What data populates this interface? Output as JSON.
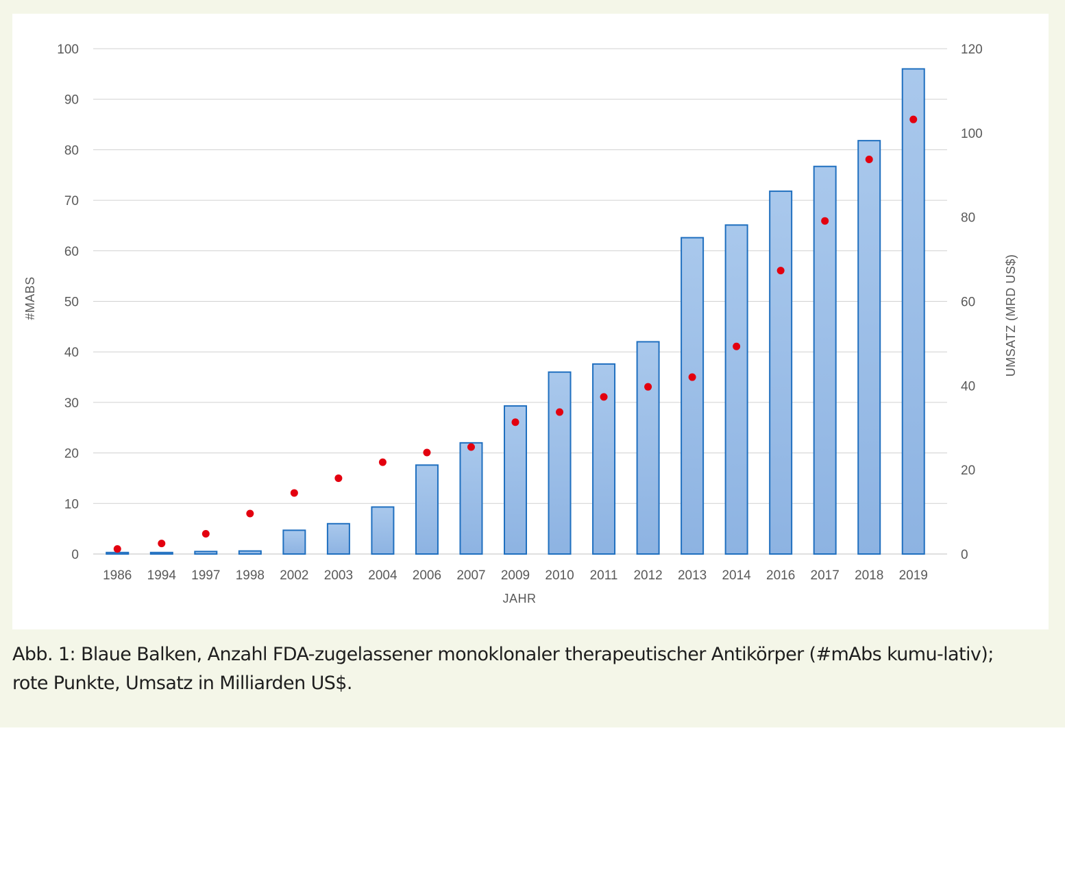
{
  "chart_data": {
    "type": "bar",
    "title": "",
    "categories": [
      "1986",
      "1994",
      "1997",
      "1998",
      "2002",
      "2003",
      "2004",
      "2006",
      "2007",
      "2009",
      "2010",
      "2011",
      "2012",
      "2013",
      "2014",
      "2016",
      "2017",
      "2018",
      "2019"
    ],
    "series": [
      {
        "name": "#mAbs kumulativ",
        "type": "bar",
        "axis": "left",
        "color": "#1f6fbf",
        "values": [
          0.3,
          0.3,
          0.5,
          0.6,
          4.7,
          6,
          9.3,
          17.6,
          22,
          29.3,
          36,
          37.6,
          42,
          62.6,
          65.1,
          71.8,
          76.7,
          81.8,
          96
        ]
      },
      {
        "name": "Umsatz (Mrd US$)",
        "type": "scatter",
        "axis": "right",
        "color": "#e3000f",
        "values": [
          1.2,
          2.5,
          4.8,
          9.6,
          14.5,
          18,
          21.8,
          24.1,
          25.4,
          31.3,
          33.7,
          37.3,
          39.7,
          42,
          49.3,
          67.3,
          79.1,
          93.7,
          103.2
        ]
      }
    ],
    "xlabel": "JAHR",
    "ylabel_left": "#MABS",
    "ylabel_right": "UMSATZ (MRD US$)",
    "ylim_left": [
      0,
      100
    ],
    "yticks_left": [
      0,
      10,
      20,
      30,
      40,
      50,
      60,
      70,
      80,
      90,
      100
    ],
    "ylim_right": [
      0,
      120
    ],
    "yticks_right": [
      0,
      20,
      40,
      60,
      80,
      100,
      120
    ],
    "grid": true,
    "legend": "none"
  },
  "caption": "Abb. 1: Blaue Balken, Anzahl FDA-zugelassener monoklonaler therapeutischer Antikörper (#mAbs kumu-lativ); rote Punkte, Umsatz in Milliarden US$."
}
